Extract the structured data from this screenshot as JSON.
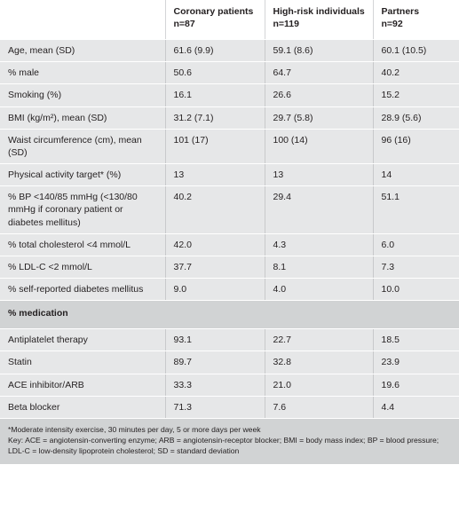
{
  "header": {
    "col1": "",
    "groups": [
      {
        "name": "Coronary patients",
        "n": "n=87"
      },
      {
        "name": "High-risk individuals",
        "n": "n=119"
      },
      {
        "name": "Partners",
        "n": "n=92"
      }
    ]
  },
  "rows": [
    {
      "label": "Age, mean (SD)",
      "values": [
        "61.6 (9.9)",
        "59.1 (8.6)",
        "60.1 (10.5)"
      ]
    },
    {
      "label": "% male",
      "values": [
        "50.6",
        " 64.7",
        "40.2"
      ]
    },
    {
      "label": "Smoking (%)",
      "values": [
        "16.1",
        "26.6",
        "15.2"
      ]
    },
    {
      "label": "BMI (kg/m²), mean (SD)",
      "values": [
        "31.2 (7.1)",
        "29.7 (5.8)",
        "28.9 (5.6)"
      ]
    },
    {
      "label": "Waist circumference (cm), mean (SD)",
      "values": [
        "101 (17)",
        "100 (14)",
        "96 (16)"
      ]
    },
    {
      "label": "Physical activity target* (%)",
      "values": [
        "13",
        "13",
        "14"
      ]
    },
    {
      "label": "% BP <140/85 mmHg (<130/80 mmHg if coronary patient or diabetes mellitus)",
      "values": [
        "40.2",
        "29.4",
        "51.1"
      ]
    },
    {
      "label": "% total cholesterol <4 mmol/L",
      "values": [
        "42.0",
        "4.3",
        "6.0"
      ]
    },
    {
      "label": "% LDL-C <2 mmol/L",
      "values": [
        "37.7",
        "8.1",
        "7.3"
      ]
    },
    {
      "label": "% self-reported diabetes mellitus",
      "values": [
        "9.0",
        "4.0",
        "10.0"
      ]
    }
  ],
  "section": {
    "label": "% medication"
  },
  "medication_rows": [
    {
      "label": "Antiplatelet therapy",
      "values": [
        "93.1",
        "22.7",
        "18.5"
      ]
    },
    {
      "label": "Statin",
      "values": [
        "89.7",
        "32.8",
        "23.9"
      ]
    },
    {
      "label": "ACE inhibitor/ARB",
      "values": [
        "33.3",
        "21.0",
        "19.6"
      ]
    },
    {
      "label": "Beta blocker",
      "values": [
        "71.3",
        "7.6",
        "4.4"
      ]
    }
  ],
  "footer": {
    "note": "*Moderate intensity exercise, 30 minutes per day, 5 or more days per week",
    "key": "Key: ACE = angiotensin-converting enzyme; ARB = angiotensin-receptor blocker; BMI = body mass index; BP = blood pressure; LDL-C = low-density lipoprotein cholesterol; SD = standard deviation"
  }
}
